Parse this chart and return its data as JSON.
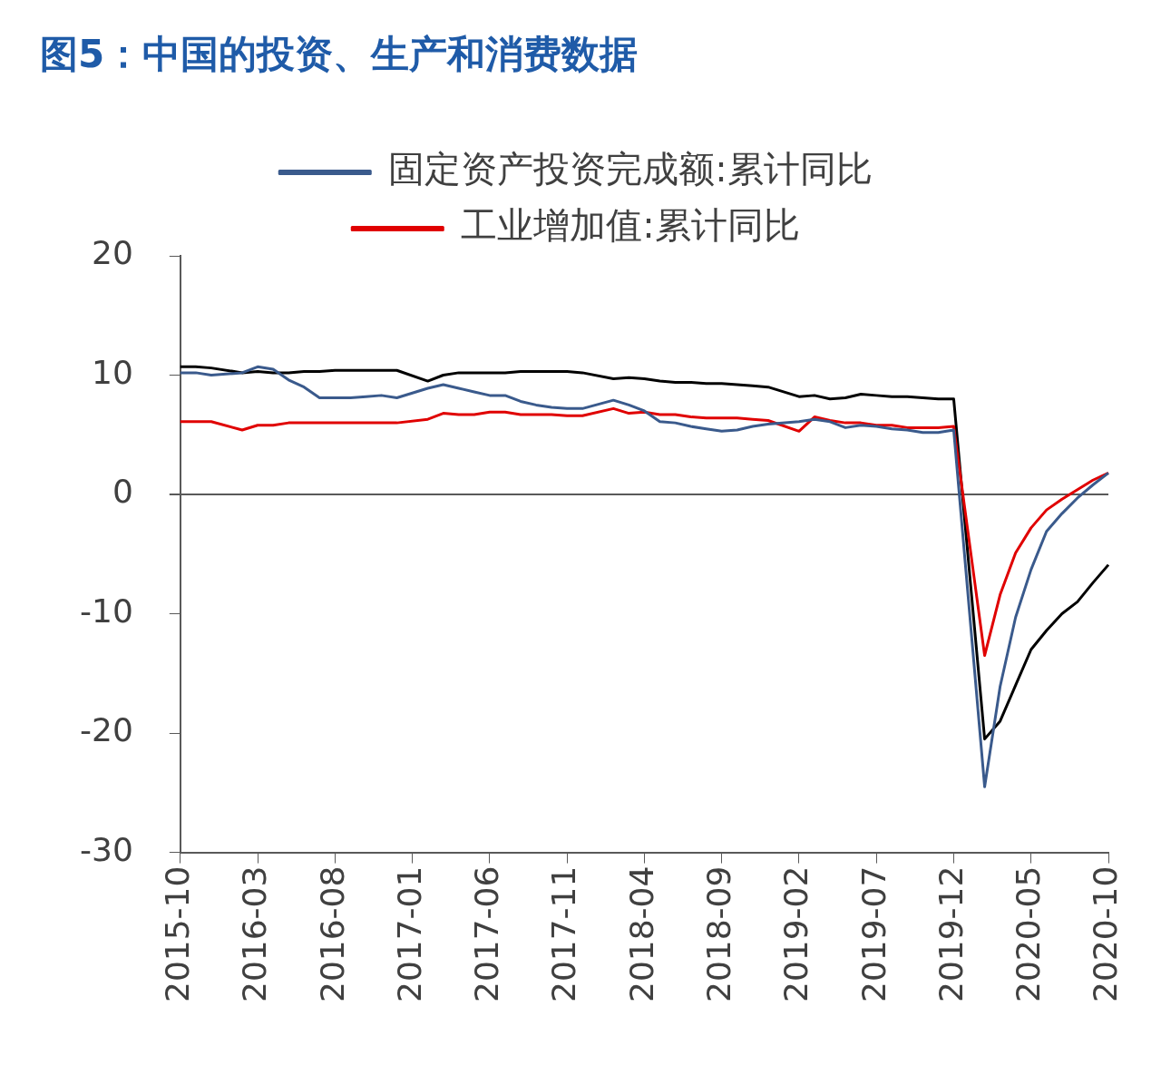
{
  "chart_data": {
    "type": "line",
    "title": "图5：中国的投资、生产和消费数据",
    "categories": [
      "2015-10",
      null,
      null,
      null,
      null,
      "2016-03",
      null,
      null,
      null,
      null,
      "2016-08",
      null,
      null,
      null,
      null,
      "2017-01",
      null,
      null,
      null,
      null,
      "2017-06",
      null,
      null,
      null,
      null,
      "2017-11",
      null,
      null,
      null,
      null,
      "2018-04",
      null,
      null,
      null,
      null,
      "2018-09",
      null,
      null,
      null,
      null,
      "2019-02",
      null,
      null,
      null,
      null,
      "2019-07",
      null,
      null,
      null,
      null,
      "2019-12",
      null,
      null,
      null,
      null,
      "2020-05",
      null,
      null,
      null,
      null,
      "2020-10"
    ],
    "series": [
      {
        "name": "固定资产投资完成额:累计同比",
        "color": "#3a5a8c",
        "values": [
          10.2,
          10.2,
          10.0,
          null,
          10.2,
          10.7,
          10.5,
          9.6,
          9.0,
          8.1,
          8.1,
          8.1,
          8.2,
          8.3,
          8.1,
          null,
          8.9,
          9.2,
          8.9,
          8.6,
          8.3,
          8.3,
          7.8,
          7.5,
          7.3,
          7.2,
          7.2,
          null,
          7.9,
          7.5,
          7.0,
          6.1,
          6.0,
          5.7,
          5.5,
          5.3,
          5.4,
          5.7,
          5.9,
          null,
          6.1,
          6.3,
          6.1,
          5.6,
          5.8,
          5.7,
          5.5,
          5.4,
          5.2,
          5.2,
          5.4,
          null,
          -24.5,
          -16.1,
          -10.3,
          -6.3,
          -3.1,
          -1.6,
          -0.3,
          0.8,
          1.8
        ]
      },
      {
        "name": "工业增加值:累计同比",
        "color": "#e00000",
        "values": [
          6.1,
          6.1,
          6.1,
          null,
          5.4,
          5.8,
          5.8,
          6.0,
          6.0,
          6.0,
          6.0,
          6.0,
          6.0,
          6.0,
          6.0,
          null,
          6.3,
          6.8,
          6.7,
          6.7,
          6.9,
          6.9,
          6.7,
          6.7,
          6.7,
          6.6,
          6.6,
          null,
          7.2,
          6.8,
          6.9,
          6.7,
          6.7,
          6.5,
          6.4,
          6.4,
          6.4,
          6.3,
          6.2,
          null,
          5.3,
          6.5,
          6.2,
          6.0,
          6.0,
          5.8,
          5.8,
          5.6,
          5.6,
          5.6,
          5.7,
          null,
          -13.5,
          -8.4,
          -4.9,
          -2.8,
          -1.3,
          -0.4,
          0.4,
          1.2,
          1.8
        ]
      },
      {
        "color": "#000000",
        "values": [
          10.7,
          10.7,
          10.6,
          null,
          10.2,
          10.3,
          10.2,
          10.2,
          10.3,
          10.3,
          10.4,
          10.4,
          10.4,
          10.4,
          10.4,
          null,
          9.5,
          10.0,
          10.2,
          10.2,
          10.2,
          10.2,
          10.3,
          10.3,
          10.3,
          10.3,
          10.2,
          null,
          9.7,
          9.8,
          9.7,
          9.5,
          9.4,
          9.4,
          9.3,
          9.3,
          9.2,
          9.1,
          9.0,
          null,
          8.2,
          8.3,
          8.0,
          8.1,
          8.4,
          8.3,
          8.2,
          8.2,
          8.1,
          8.0,
          8.0,
          null,
          -20.5,
          -19.0,
          -16.0,
          -13.0,
          -11.4,
          -10.0,
          -9.0,
          -7.4,
          -5.9
        ]
      }
    ],
    "ylim": [
      -30,
      20
    ],
    "yticks": [
      -30,
      -20,
      -10,
      0,
      10,
      20
    ],
    "legend": "top",
    "marker": "none",
    "line_style": "solid"
  }
}
